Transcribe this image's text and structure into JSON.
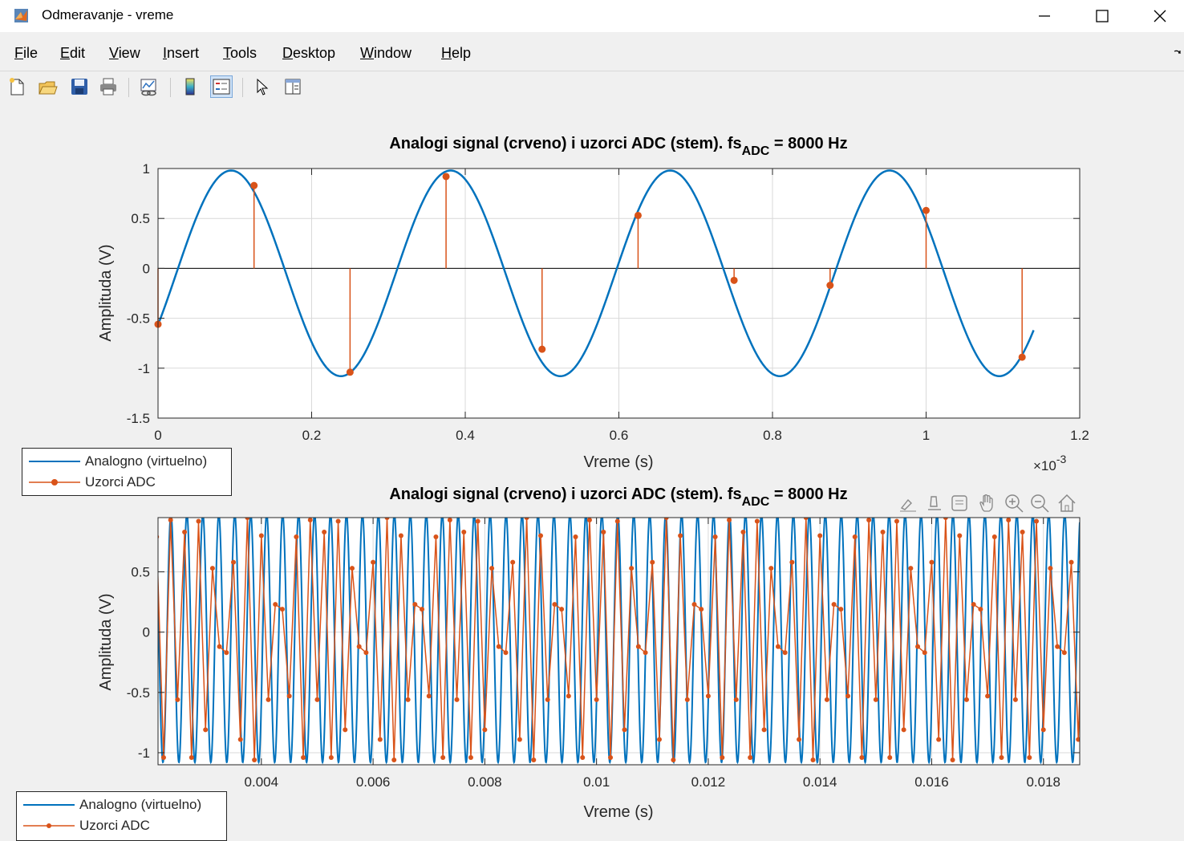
{
  "window": {
    "title": "Odmeravanje - vreme",
    "minimize_glyph": "─",
    "maximize_glyph": "☐",
    "close_glyph": "✕"
  },
  "menu": [
    "File",
    "Edit",
    "View",
    "Insert",
    "Tools",
    "Desktop",
    "Window",
    "Help"
  ],
  "toolbar": [
    "new-figure-icon",
    "open-file-icon",
    "save-icon",
    "print-icon",
    "link-plot-icon",
    "colorbar-icon",
    "legend-icon",
    "edit-plot-arrow-icon",
    "property-inspector-icon"
  ],
  "axes_toolbar": [
    "brush-icon",
    "data-tips-icon",
    "data-cursor-icon",
    "pan-icon",
    "zoom-in-icon",
    "zoom-out-icon",
    "home-icon"
  ],
  "colors": {
    "analog": "#0072BD",
    "samples": "#D95319",
    "grid": "#d9d9d9",
    "axis": "#262626"
  },
  "chart_data": [
    {
      "type": "line",
      "title": "Analogi signal (crveno) i uzorci ADC (stem). fs",
      "title_subscript": "ADC",
      "title_suffix": " = 8000 Hz",
      "xlabel": "Vreme (s)",
      "ylabel": "Amplituda (V)",
      "x_exponent": "×10",
      "x_exponent_power": "-3",
      "xlim": [
        0,
        1.2
      ],
      "ylim": [
        -1.5,
        1
      ],
      "xticks": [
        "0",
        "0.2",
        "0.4",
        "0.6",
        "0.8",
        "1",
        "1.2"
      ],
      "yticks": [
        "1",
        "0.5",
        "0",
        "-0.5",
        "-1",
        "-1.5"
      ],
      "grid": true,
      "legend": "outside-bottom-left",
      "series": [
        {
          "name": "Analogno (virtuelno)",
          "style": "line",
          "function": {
            "amplitude": 1.03,
            "offset": -0.05,
            "frequency_cycles_per_ms": 3.5,
            "phase_deg": -30
          },
          "x_range": [
            0,
            1.14
          ]
        },
        {
          "name": "Uzorci ADC",
          "style": "stem",
          "x": [
            0,
            0.125,
            0.25,
            0.375,
            0.5,
            0.625,
            0.75,
            0.875,
            1.0,
            1.125
          ],
          "y": [
            -0.56,
            0.83,
            -1.04,
            0.92,
            -0.81,
            0.53,
            -0.12,
            -0.17,
            0.58,
            -0.89
          ]
        }
      ]
    },
    {
      "type": "line",
      "title": "Analogi signal (crveno) i uzorci ADC (stem). fs",
      "title_subscript": "ADC",
      "title_suffix": " = 8000 Hz",
      "xlabel": "Vreme (s)",
      "ylabel": "Amplituda (V)",
      "xlim": [
        0.00215,
        0.01865
      ],
      "ylim": [
        -1.1,
        0.95
      ],
      "xticks": [
        "0.004",
        "0.006",
        "0.008",
        "0.01",
        "0.012",
        "0.014",
        "0.016",
        "0.018"
      ],
      "yticks": [
        "0.5",
        "0",
        "-0.5",
        "-1"
      ],
      "grid": true,
      "legend": "outside-bottom-left",
      "series": [
        {
          "name": "Analogno (virtuelno)",
          "style": "line",
          "function": {
            "amplitude": 1.03,
            "offset": -0.05,
            "frequency_hz": 3500,
            "phase_deg": -30
          }
        },
        {
          "name": "Uzorci ADC",
          "style": "line-marker",
          "sample_period_s": 0.000125,
          "repeating_values": [
            -0.56,
            0.83,
            -1.04,
            0.92,
            -0.81,
            0.53,
            -0.12,
            -0.17,
            0.58,
            -0.89,
            0.95,
            -1.06,
            0.8,
            -0.56,
            0.23,
            0.19,
            -0.53,
            0.79,
            -1.04,
            0.93
          ]
        }
      ]
    }
  ]
}
